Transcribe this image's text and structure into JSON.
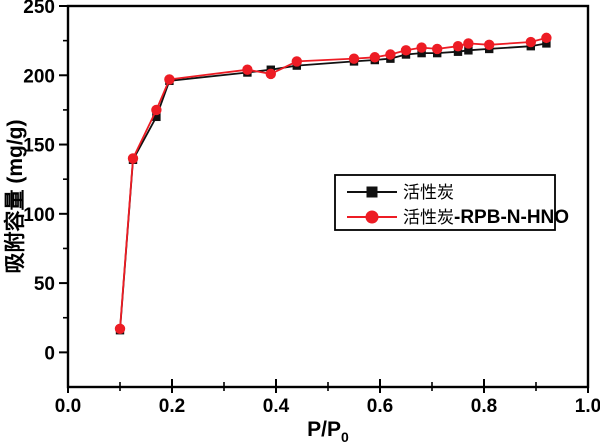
{
  "figure": {
    "background": "#ffffff",
    "frame_color": "#000000"
  },
  "chart_data": {
    "type": "line",
    "title": "",
    "xlabel": "P/P",
    "xlabel_subscript": "0",
    "ylabel": "吸附容量 (mg/g)",
    "xlim": [
      0.0,
      1.0
    ],
    "ylim": [
      -25,
      250
    ],
    "grid": false,
    "x_major_ticks": [
      0.0,
      0.2,
      0.4,
      0.6,
      0.8,
      1.0
    ],
    "x_minor_ticks": [
      0.1,
      0.3,
      0.5,
      0.7,
      0.9
    ],
    "x_tick_labels": [
      "0.0",
      "0.2",
      "0.4",
      "0.6",
      "0.8",
      "1.0"
    ],
    "y_major_ticks": [
      0,
      50,
      100,
      150,
      200,
      250
    ],
    "y_minor_ticks": [
      25,
      75,
      125,
      175,
      225
    ],
    "y_tick_labels": [
      "0",
      "50",
      "100",
      "150",
      "200",
      "250"
    ],
    "x": [
      0.1,
      0.125,
      0.17,
      0.195,
      0.345,
      0.39,
      0.44,
      0.55,
      0.59,
      0.62,
      0.65,
      0.68,
      0.71,
      0.75,
      0.77,
      0.81,
      0.89,
      0.92
    ],
    "series": [
      {
        "name": "活性炭",
        "color": "#111111",
        "marker": "square",
        "values": [
          16,
          139,
          170,
          196,
          202,
          204,
          207,
          210,
          211,
          212,
          215,
          216,
          216,
          217,
          218,
          219,
          221,
          223
        ]
      },
      {
        "name": "活性炭-RPB-N-HNO",
        "color": "#ed1c24",
        "marker": "circle",
        "values": [
          17,
          140,
          175,
          197,
          204,
          201,
          210,
          212,
          213,
          215,
          218,
          220,
          219,
          221,
          223,
          222,
          224,
          227
        ]
      }
    ],
    "legend": {
      "position": "center-right",
      "border_color": "#000000",
      "entries": [
        {
          "parts": [
            {
              "text": "活性炭",
              "bold": false
            }
          ]
        },
        {
          "parts": [
            {
              "text": "活性炭",
              "bold": false
            },
            {
              "text": "-RPB-N-HNO",
              "bold": true
            }
          ]
        }
      ]
    }
  }
}
